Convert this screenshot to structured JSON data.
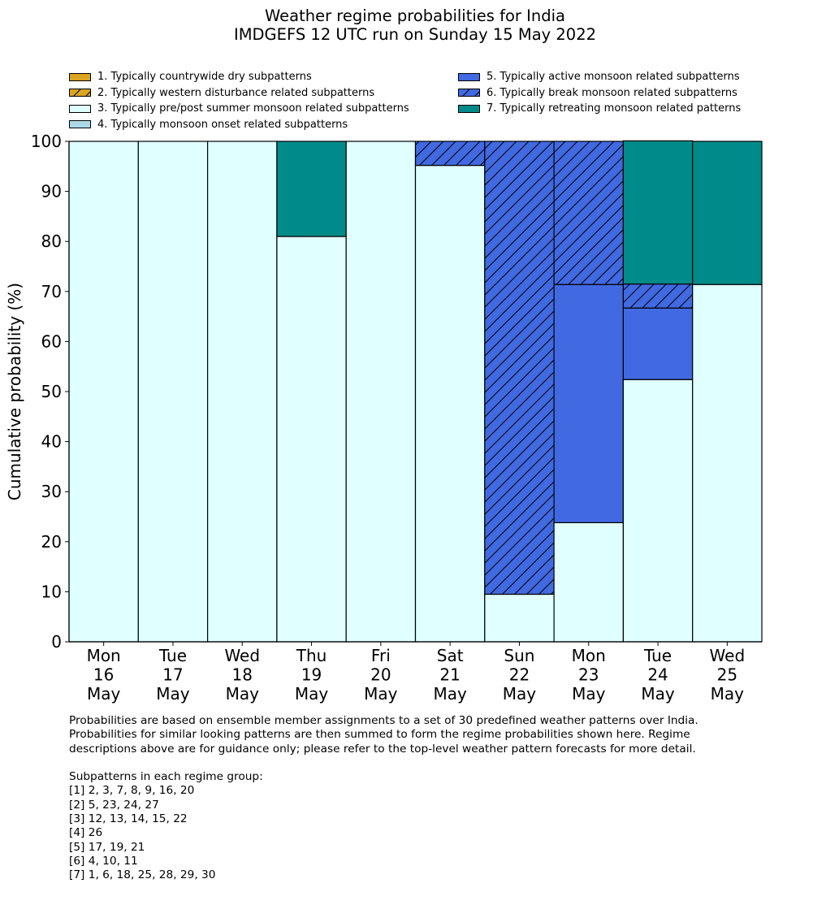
{
  "title_line1": "Weather regime probabilities for India",
  "title_line2": "IMDGEFS 12 UTC run on Sunday 15 May 2022",
  "legend": [
    {
      "label": "1. Typically countrywide dry subpatterns",
      "color": "#DAA520",
      "hatch": false
    },
    {
      "label": "2. Typically western disturbance related subpatterns",
      "color": "#DAA520",
      "hatch": true
    },
    {
      "label": "3. Typically pre/post summer monsoon related subpatterns",
      "color": "#E0FFFF",
      "hatch": false
    },
    {
      "label": "4. Typically monsoon onset related subpatterns",
      "color": "#ADD8E6",
      "hatch": false
    },
    {
      "label": "5. Typically active monsoon related subpatterns",
      "color": "#4169E1",
      "hatch": false
    },
    {
      "label": "6. Typically break monsoon related subpatterns",
      "color": "#4169E1",
      "hatch": true
    },
    {
      "label": "7. Typically retreating monsoon related patterns",
      "color": "#008B8B",
      "hatch": false
    }
  ],
  "footnote": {
    "lines": [
      "Probabilities are based on ensemble member assignments to a set of 30 predefined weather patterns over India.",
      "Probabilities for similar looking patterns are then summed to form the regime probabilities shown here. Regime",
      "descriptions above are for guidance only; please refer to the top-level weather pattern forecasts for more detail."
    ],
    "groups_title": "Subpatterns in each regime group:",
    "groups": [
      "[1] 2, 3, 7, 8, 9, 16, 20",
      "[2] 5, 23, 24, 27",
      "[3] 12, 13, 14, 15, 22",
      "[4] 26",
      "[5] 17, 19, 21",
      "[6] 4, 10, 11",
      "[7] 1, 6, 18, 25, 28, 29, 30"
    ]
  },
  "chart_data": {
    "type": "bar",
    "stacked": true,
    "title": "Weather regime probabilities for India\nIMDGEFS 12 UTC run on Sunday 15 May 2022",
    "ylabel": "Cumulative probability (%)",
    "ylim": [
      0,
      100
    ],
    "yticks": [
      0,
      10,
      20,
      30,
      40,
      50,
      60,
      70,
      80,
      90,
      100
    ],
    "categories": [
      [
        "Mon",
        "16",
        "May"
      ],
      [
        "Tue",
        "17",
        "May"
      ],
      [
        "Wed",
        "18",
        "May"
      ],
      [
        "Thu",
        "19",
        "May"
      ],
      [
        "Fri",
        "20",
        "May"
      ],
      [
        "Sat",
        "21",
        "May"
      ],
      [
        "Sun",
        "22",
        "May"
      ],
      [
        "Mon",
        "23",
        "May"
      ],
      [
        "Tue",
        "24",
        "May"
      ],
      [
        "Wed",
        "25",
        "May"
      ]
    ],
    "series": [
      {
        "name": "1. Typically countrywide dry subpatterns",
        "color": "#DAA520",
        "hatch": false,
        "values": [
          0,
          0,
          0,
          0,
          0,
          0,
          0,
          0,
          0,
          0
        ]
      },
      {
        "name": "2. Typically western disturbance related subpatterns",
        "color": "#DAA520",
        "hatch": true,
        "values": [
          0,
          0,
          0,
          0,
          0,
          0,
          0,
          0,
          0,
          0
        ]
      },
      {
        "name": "3. Typically pre/post summer monsoon related subpatterns",
        "color": "#E0FFFF",
        "hatch": false,
        "values": [
          100,
          100,
          100,
          81,
          100,
          95.2,
          9.5,
          23.8,
          52.4,
          71.4
        ]
      },
      {
        "name": "4. Typically monsoon onset related subpatterns",
        "color": "#ADD8E6",
        "hatch": false,
        "values": [
          0,
          0,
          0,
          0,
          0,
          0,
          0,
          0,
          0,
          0
        ]
      },
      {
        "name": "5. Typically active monsoon related subpatterns",
        "color": "#4169E1",
        "hatch": false,
        "values": [
          0,
          0,
          0,
          0,
          0,
          0,
          0,
          47.6,
          14.3,
          0
        ]
      },
      {
        "name": "6. Typically break monsoon related subpatterns",
        "color": "#4169E1",
        "hatch": true,
        "values": [
          0,
          0,
          0,
          0,
          0,
          4.8,
          90.5,
          28.6,
          4.8,
          0
        ]
      },
      {
        "name": "7. Typically retreating monsoon related patterns",
        "color": "#008B8B",
        "hatch": false,
        "values": [
          0,
          0,
          0,
          19,
          0,
          0,
          0,
          0,
          28.6,
          28.6
        ]
      }
    ]
  }
}
